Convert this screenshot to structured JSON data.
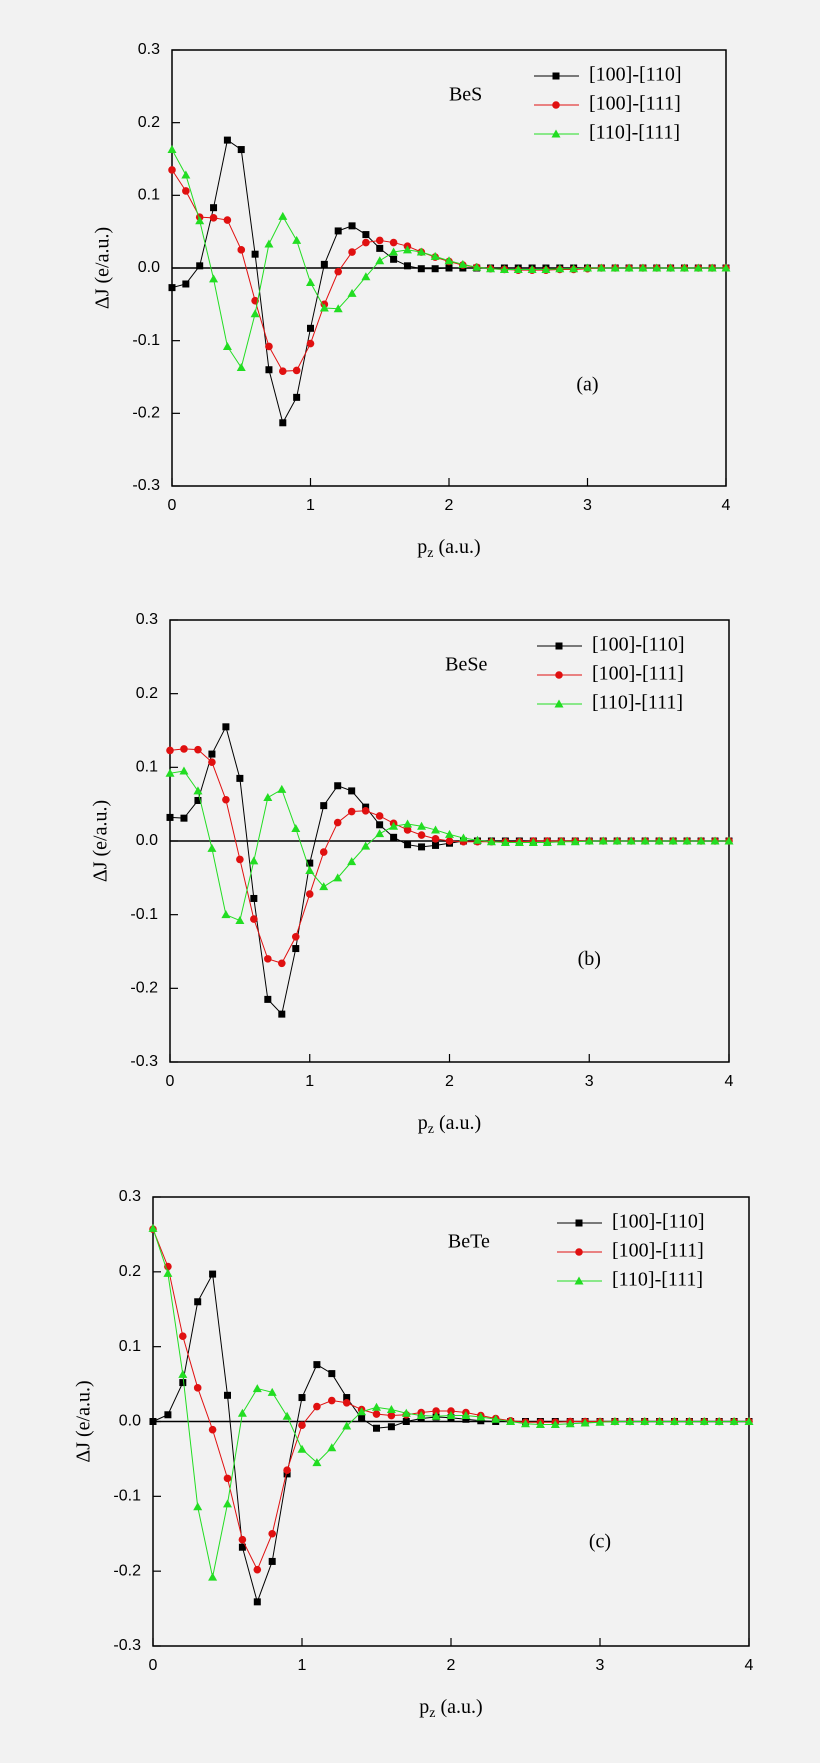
{
  "chart_data": [
    {
      "type": "line",
      "label": "BeS",
      "panel_label": "(a)",
      "xlabel": [
        "p",
        "z",
        " (a.u.)"
      ],
      "ylabel": "ΔJ (e/a.u.)",
      "legend": "upper right",
      "xlim": [
        0,
        4
      ],
      "xticks": [
        0,
        1,
        2,
        3,
        4
      ],
      "ylim": [
        -0.3,
        0.3
      ],
      "yticks": [
        -0.3,
        -0.2,
        -0.1,
        {
          "value": 0,
          "label": "0.0"
        },
        0.1,
        0.2,
        0.3
      ],
      "x": [
        0,
        0.1,
        0.2,
        0.3,
        0.4,
        0.5,
        0.6,
        0.7,
        0.8,
        0.9,
        1,
        1.1,
        1.2,
        1.3,
        1.4,
        1.5,
        1.6,
        1.7,
        1.8,
        1.9,
        2,
        2.1,
        2.2,
        2.3,
        2.4,
        2.5,
        2.6,
        2.7,
        2.8,
        2.9,
        3,
        3.1,
        3.2,
        3.3,
        3.4,
        3.5,
        3.6,
        3.7,
        3.8,
        3.9,
        4
      ],
      "series": [
        {
          "name": "[100]-[110]",
          "color": "#000000",
          "marker": "square",
          "values": [
            -0.027,
            -0.022,
            0.003,
            0.083,
            0.176,
            0.163,
            0.019,
            -0.14,
            -0.213,
            -0.178,
            -0.083,
            0.005,
            0.051,
            0.058,
            0.046,
            0.027,
            0.012,
            0.003,
            -0.001,
            -0.001,
            0,
            0,
            0,
            0,
            0,
            0,
            0,
            0,
            0,
            0,
            0,
            0,
            0,
            0,
            0,
            0,
            0,
            0,
            0,
            0,
            0
          ]
        },
        {
          "name": "[100]-[111]",
          "color": "#e01010",
          "marker": "circle",
          "values": [
            0.135,
            0.106,
            0.07,
            0.069,
            0.066,
            0.025,
            -0.045,
            -0.108,
            -0.142,
            -0.141,
            -0.104,
            -0.05,
            -0.005,
            0.022,
            0.035,
            0.038,
            0.035,
            0.03,
            0.022,
            0.015,
            0.009,
            0.004,
            0.001,
            -0.001,
            -0.002,
            -0.003,
            -0.003,
            -0.003,
            -0.002,
            -0.002,
            -0.001,
            0,
            0,
            0,
            0,
            0,
            0,
            0,
            0,
            0,
            0
          ]
        },
        {
          "name": "[110]-[111]",
          "color": "#22dd22",
          "marker": "triangle",
          "values": [
            0.163,
            0.128,
            0.065,
            -0.015,
            -0.108,
            -0.137,
            -0.063,
            0.033,
            0.071,
            0.038,
            -0.02,
            -0.055,
            -0.056,
            -0.035,
            -0.012,
            0.01,
            0.022,
            0.025,
            0.022,
            0.016,
            0.01,
            0.005,
            0.001,
            -0.001,
            -0.002,
            -0.002,
            -0.002,
            -0.002,
            -0.001,
            -0.001,
            0,
            0,
            0,
            0,
            0,
            0,
            0,
            0,
            0,
            0,
            0
          ]
        }
      ]
    },
    {
      "type": "line",
      "label": "BeSe",
      "panel_label": "(b)",
      "xlabel": [
        "p",
        "z",
        " (a.u.)"
      ],
      "ylabel": "ΔJ (e/a.u.)",
      "legend": "upper right",
      "xlim": [
        0,
        4
      ],
      "xticks": [
        0,
        1,
        2,
        3,
        4
      ],
      "ylim": [
        -0.3,
        0.3
      ],
      "yticks": [
        -0.3,
        -0.2,
        -0.1,
        {
          "value": 0,
          "label": "0.0"
        },
        0.1,
        0.2,
        0.3
      ],
      "x": [
        0,
        0.1,
        0.2,
        0.3,
        0.4,
        0.5,
        0.6,
        0.7,
        0.8,
        0.9,
        1,
        1.1,
        1.2,
        1.3,
        1.4,
        1.5,
        1.6,
        1.7,
        1.8,
        1.9,
        2,
        2.1,
        2.2,
        2.3,
        2.4,
        2.5,
        2.6,
        2.7,
        2.8,
        2.9,
        3,
        3.1,
        3.2,
        3.3,
        3.4,
        3.5,
        3.6,
        3.7,
        3.8,
        3.9,
        4
      ],
      "series": [
        {
          "name": "[100]-[110]",
          "color": "#000000",
          "marker": "square",
          "values": [
            0.032,
            0.031,
            0.055,
            0.118,
            0.155,
            0.085,
            -0.078,
            -0.215,
            -0.235,
            -0.146,
            -0.03,
            0.048,
            0.075,
            0.068,
            0.046,
            0.022,
            0.005,
            -0.005,
            -0.008,
            -0.006,
            -0.003,
            0,
            0,
            0,
            0,
            0,
            0,
            0,
            0,
            0,
            0,
            0,
            0,
            0,
            0,
            0,
            0,
            0,
            0,
            0,
            0
          ]
        },
        {
          "name": "[100]-[111]",
          "color": "#e01010",
          "marker": "circle",
          "values": [
            0.123,
            0.125,
            0.124,
            0.107,
            0.056,
            -0.025,
            -0.106,
            -0.16,
            -0.166,
            -0.13,
            -0.072,
            -0.015,
            0.025,
            0.04,
            0.041,
            0.034,
            0.024,
            0.015,
            0.008,
            0.003,
            0,
            -0.001,
            -0.001,
            -0.001,
            -0.001,
            -0.001,
            0,
            0,
            0,
            0,
            0,
            0,
            0,
            0,
            0,
            0,
            0,
            0,
            0,
            0,
            0
          ]
        },
        {
          "name": "[110]-[111]",
          "color": "#22dd22",
          "marker": "triangle",
          "values": [
            0.092,
            0.095,
            0.068,
            -0.01,
            -0.1,
            -0.108,
            -0.027,
            0.059,
            0.07,
            0.017,
            -0.04,
            -0.062,
            -0.05,
            -0.028,
            -0.007,
            0.01,
            0.02,
            0.023,
            0.02,
            0.015,
            0.009,
            0.004,
            0.001,
            -0.001,
            -0.002,
            -0.002,
            -0.002,
            -0.002,
            -0.001,
            -0.001,
            0,
            0,
            0,
            0,
            0,
            0,
            0,
            0,
            0,
            0,
            0
          ]
        }
      ]
    },
    {
      "type": "line",
      "label": "BeTe",
      "panel_label": "(c)",
      "xlabel": [
        "p",
        "z",
        " (a.u.)"
      ],
      "ylabel": "ΔJ (e/a.u.)",
      "legend": "upper right",
      "xlim": [
        0,
        4
      ],
      "xticks": [
        0,
        1,
        2,
        3,
        4
      ],
      "ylim": [
        -0.3,
        0.3
      ],
      "yticks": [
        -0.3,
        -0.2,
        -0.1,
        {
          "value": 0,
          "label": "0.0"
        },
        0.1,
        0.2,
        0.3
      ],
      "x": [
        0,
        0.1,
        0.2,
        0.3,
        0.4,
        0.5,
        0.6,
        0.7,
        0.8,
        0.9,
        1,
        1.1,
        1.2,
        1.3,
        1.4,
        1.5,
        1.6,
        1.7,
        1.8,
        1.9,
        2,
        2.1,
        2.2,
        2.3,
        2.4,
        2.5,
        2.6,
        2.7,
        2.8,
        2.9,
        3,
        3.1,
        3.2,
        3.3,
        3.4,
        3.5,
        3.6,
        3.7,
        3.8,
        3.9,
        4
      ],
      "series": [
        {
          "name": "[100]-[110]",
          "color": "#000000",
          "marker": "square",
          "values": [
            0,
            0.009,
            0.052,
            0.16,
            0.197,
            0.035,
            -0.168,
            -0.241,
            -0.187,
            -0.07,
            0.032,
            0.076,
            0.064,
            0.032,
            0.004,
            -0.009,
            -0.007,
            0,
            0.004,
            0.006,
            0.005,
            0.003,
            0.001,
            0,
            0,
            0,
            0,
            0,
            0,
            0,
            0,
            0,
            0,
            0,
            0,
            0,
            0,
            0,
            0,
            0,
            0
          ]
        },
        {
          "name": "[100]-[111]",
          "color": "#e01010",
          "marker": "circle",
          "values": [
            0.257,
            0.207,
            0.114,
            0.045,
            -0.011,
            -0.076,
            -0.158,
            -0.198,
            -0.15,
            -0.065,
            -0.005,
            0.02,
            0.028,
            0.025,
            0.016,
            0.01,
            0.008,
            0.009,
            0.012,
            0.014,
            0.014,
            0.012,
            0.008,
            0.004,
            0.001,
            -0.001,
            -0.001,
            -0.001,
            0,
            0,
            0,
            0,
            0,
            0,
            0,
            0,
            0,
            0,
            0,
            0,
            0
          ]
        },
        {
          "name": "[110]-[111]",
          "color": "#22dd22",
          "marker": "triangle",
          "values": [
            0.258,
            0.198,
            0.063,
            -0.114,
            -0.208,
            -0.11,
            0.011,
            0.044,
            0.039,
            0.007,
            -0.037,
            -0.055,
            -0.035,
            -0.006,
            0.013,
            0.019,
            0.016,
            0.011,
            0.008,
            0.007,
            0.008,
            0.008,
            0.006,
            0.003,
            0,
            -0.003,
            -0.004,
            -0.004,
            -0.003,
            -0.002,
            -0.001,
            0,
            0,
            0,
            0,
            0,
            0,
            0,
            0,
            0,
            0
          ]
        }
      ]
    }
  ]
}
